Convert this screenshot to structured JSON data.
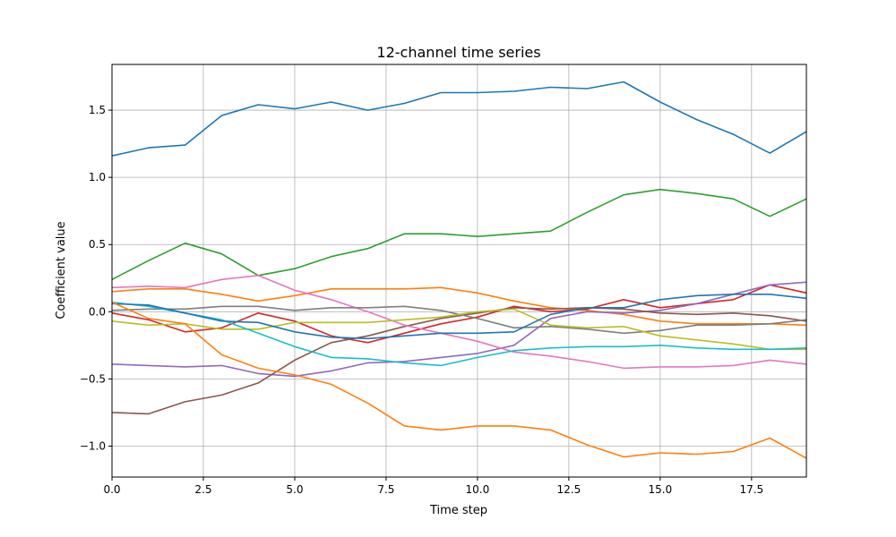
{
  "chart_data": {
    "type": "line",
    "title": "12-channel time series",
    "xlabel": "Time step",
    "ylabel": "Coefficient value",
    "xlim": [
      0,
      19
    ],
    "ylim": [
      -1.23,
      1.84
    ],
    "xticks": [
      0.0,
      2.5,
      5.0,
      7.5,
      10.0,
      12.5,
      15.0,
      17.5
    ],
    "xtick_labels": [
      "0.0",
      "2.5",
      "5.0",
      "7.5",
      "10.0",
      "12.5",
      "15.0",
      "17.5"
    ],
    "yticks": [
      -1.0,
      -0.5,
      0.0,
      0.5,
      1.0,
      1.5
    ],
    "ytick_labels": [
      "−1.0",
      "−0.5",
      "0.0",
      "0.5",
      "1.0",
      "1.5"
    ],
    "grid": true,
    "x": [
      0,
      1,
      2,
      3,
      4,
      5,
      6,
      7,
      8,
      9,
      10,
      11,
      12,
      13,
      14,
      15,
      16,
      17,
      18,
      19
    ],
    "series": [
      {
        "color": "#1f77b4",
        "values": [
          1.16,
          1.22,
          1.24,
          1.46,
          1.54,
          1.51,
          1.56,
          1.5,
          1.55,
          1.63,
          1.63,
          1.64,
          1.67,
          1.66,
          1.71,
          1.56,
          1.43,
          1.32,
          1.18,
          1.34
        ]
      },
      {
        "color": "#ff7f0e",
        "values": [
          0.15,
          0.17,
          0.17,
          0.13,
          0.08,
          0.12,
          0.17,
          0.17,
          0.17,
          0.18,
          0.14,
          0.08,
          0.03,
          0.01,
          -0.02,
          -0.07,
          -0.09,
          -0.09,
          -0.09,
          -0.1
        ]
      },
      {
        "color": "#2ca02c",
        "values": [
          0.24,
          0.38,
          0.51,
          0.43,
          0.27,
          0.32,
          0.41,
          0.47,
          0.58,
          0.58,
          0.56,
          0.58,
          0.6,
          0.74,
          0.87,
          0.91,
          0.88,
          0.84,
          0.71,
          0.84
        ]
      },
      {
        "color": "#d62728",
        "values": [
          -0.01,
          -0.06,
          -0.15,
          -0.12,
          -0.01,
          -0.07,
          -0.18,
          -0.23,
          -0.16,
          -0.09,
          -0.04,
          0.04,
          0.0,
          0.02,
          0.09,
          0.03,
          0.06,
          0.09,
          0.2,
          0.14
        ]
      },
      {
        "color": "#9467bd",
        "values": [
          -0.39,
          -0.4,
          -0.41,
          -0.4,
          -0.46,
          -0.48,
          -0.44,
          -0.38,
          -0.37,
          -0.34,
          -0.31,
          -0.25,
          -0.05,
          0.0,
          -0.01,
          0.01,
          0.06,
          0.13,
          0.2,
          0.22
        ]
      },
      {
        "color": "#8c564b",
        "values": [
          -0.75,
          -0.76,
          -0.67,
          -0.62,
          -0.53,
          -0.36,
          -0.23,
          -0.18,
          -0.11,
          -0.05,
          -0.01,
          0.03,
          0.02,
          0.03,
          0.02,
          -0.01,
          -0.02,
          -0.01,
          -0.03,
          -0.07
        ]
      },
      {
        "color": "#e377c2",
        "values": [
          0.18,
          0.19,
          0.18,
          0.24,
          0.27,
          0.16,
          0.09,
          0.0,
          -0.1,
          -0.16,
          -0.22,
          -0.3,
          -0.33,
          -0.37,
          -0.42,
          -0.41,
          -0.41,
          -0.4,
          -0.36,
          -0.39
        ]
      },
      {
        "color": "#7f7f7f",
        "values": [
          0.01,
          0.02,
          0.02,
          0.04,
          0.04,
          0.01,
          0.03,
          0.03,
          0.04,
          0.01,
          -0.05,
          -0.12,
          -0.11,
          -0.13,
          -0.16,
          -0.14,
          -0.1,
          -0.1,
          -0.09,
          -0.06
        ]
      },
      {
        "color": "#bcbd22",
        "values": [
          -0.07,
          -0.1,
          -0.09,
          -0.13,
          -0.13,
          -0.08,
          -0.08,
          -0.08,
          -0.06,
          -0.04,
          0.0,
          0.02,
          -0.1,
          -0.12,
          -0.11,
          -0.18,
          -0.21,
          -0.24,
          -0.28,
          -0.28
        ]
      },
      {
        "color": "#17becf",
        "values": [
          0.07,
          0.04,
          -0.01,
          -0.06,
          -0.16,
          -0.26,
          -0.34,
          -0.35,
          -0.38,
          -0.4,
          -0.34,
          -0.29,
          -0.27,
          -0.26,
          -0.26,
          -0.25,
          -0.27,
          -0.28,
          -0.28,
          -0.27
        ]
      },
      {
        "color": "#1f77b4",
        "values": [
          0.06,
          0.05,
          -0.01,
          -0.07,
          -0.08,
          -0.15,
          -0.19,
          -0.2,
          -0.18,
          -0.16,
          -0.16,
          -0.15,
          -0.02,
          0.03,
          0.03,
          0.09,
          0.12,
          0.13,
          0.13,
          0.1
        ]
      },
      {
        "color": "#ff7f0e",
        "values": [
          0.07,
          -0.05,
          -0.09,
          -0.32,
          -0.42,
          -0.47,
          -0.54,
          -0.68,
          -0.85,
          -0.88,
          -0.85,
          -0.85,
          -0.88,
          -0.99,
          -1.08,
          -1.05,
          -1.06,
          -1.04,
          -0.94,
          -1.09
        ]
      }
    ]
  }
}
